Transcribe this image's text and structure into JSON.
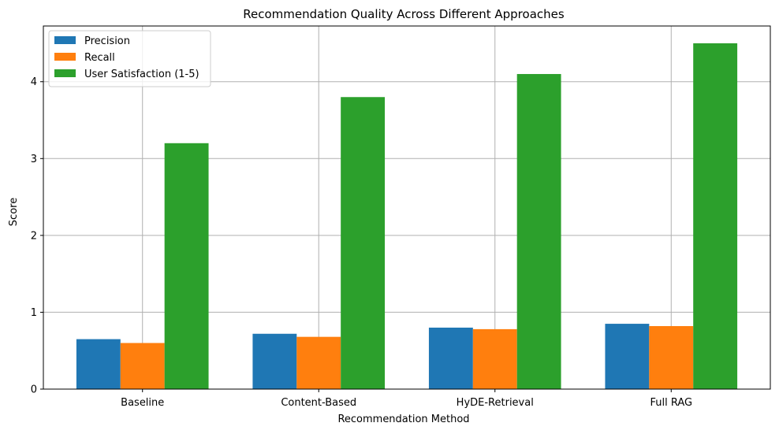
{
  "chart_data": {
    "type": "bar",
    "title": "Recommendation Quality Across Different Approaches",
    "xlabel": "Recommendation Method",
    "ylabel": "Score",
    "categories": [
      "Baseline",
      "Content-Based",
      "HyDE-Retrieval",
      "Full RAG"
    ],
    "series": [
      {
        "name": "Precision",
        "color": "#1f77b4",
        "values": [
          0.65,
          0.72,
          0.8,
          0.85
        ]
      },
      {
        "name": "Recall",
        "color": "#ff7f0e",
        "values": [
          0.6,
          0.68,
          0.78,
          0.82
        ]
      },
      {
        "name": "User Satisfaction (1-5)",
        "color": "#2ca02c",
        "values": [
          3.2,
          3.8,
          4.1,
          4.5
        ]
      }
    ],
    "ylim": [
      0,
      4.725
    ],
    "yticks": [
      "0",
      "1",
      "2",
      "3",
      "4"
    ],
    "grid": true,
    "legend_position": "top-left"
  }
}
